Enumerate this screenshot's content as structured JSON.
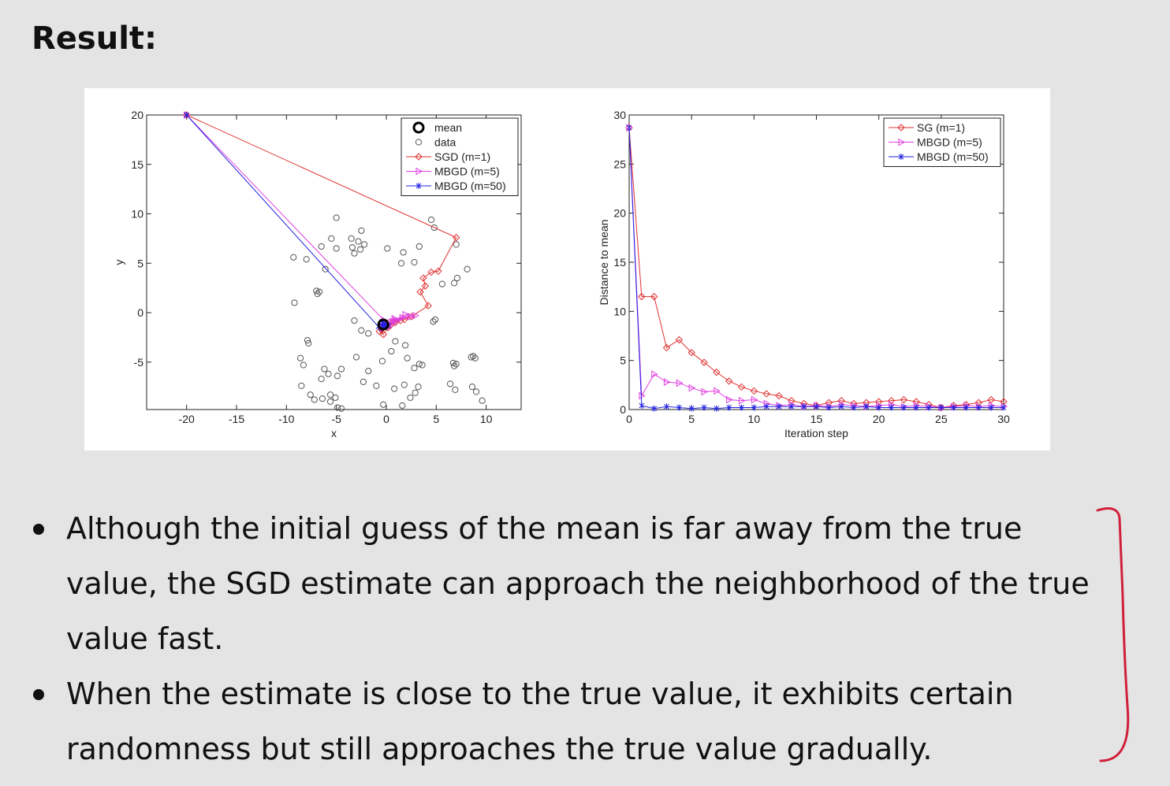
{
  "slide": {
    "title": "Result:",
    "bullets": [
      "Although the initial guess of the mean is far away from the true value, the SGD estimate can approach the neighborhood of the true value fast.",
      "When the estimate is close to the true value, it exhibits certain randomness but still approaches the true value gradually."
    ],
    "annotation_color": "#d0203a"
  },
  "chart_data": [
    {
      "type": "scatter",
      "title": "",
      "xlabel": "x",
      "ylabel": "y",
      "xlim": [
        -24,
        13.5
      ],
      "ylim": [
        -9.8,
        20
      ],
      "xticks": [
        -20,
        -15,
        -10,
        -5,
        0,
        5,
        10
      ],
      "yticks": [
        20,
        15,
        10,
        5,
        0,
        -5
      ],
      "grid": false,
      "legend_position": "top-right",
      "legend": [
        "mean",
        "data",
        "SGD (m=1)",
        "MBGD (m=5)",
        "MBGD (m=50)"
      ],
      "series": [
        {
          "name": "mean",
          "color": "#000000",
          "marker": "big-circle",
          "points": [
            [
              -0.3,
              -1.2
            ]
          ]
        },
        {
          "name": "data",
          "color": "#555555",
          "marker": "circle",
          "points": [
            [
              -5.0,
              9.6
            ],
            [
              -2.5,
              8.3
            ],
            [
              -3.5,
              7.5
            ],
            [
              -2.8,
              7.2
            ],
            [
              -2.2,
              6.9
            ],
            [
              -3.4,
              6.6
            ],
            [
              -2.6,
              6.4
            ],
            [
              -3.2,
              6.0
            ],
            [
              -5.5,
              7.5
            ],
            [
              -5.0,
              6.5
            ],
            [
              -6.5,
              6.7
            ],
            [
              -9.3,
              5.6
            ],
            [
              -8.0,
              5.4
            ],
            [
              -6.1,
              4.4
            ],
            [
              -7.0,
              2.2
            ],
            [
              -6.7,
              2.1
            ],
            [
              -6.9,
              1.9
            ],
            [
              -9.2,
              1.0
            ],
            [
              0.1,
              6.5
            ],
            [
              1.7,
              6.1
            ],
            [
              3.3,
              6.7
            ],
            [
              2.8,
              5.1
            ],
            [
              1.5,
              5.0
            ],
            [
              4.5,
              9.4
            ],
            [
              4.8,
              8.6
            ],
            [
              7.0,
              6.9
            ],
            [
              8.1,
              4.4
            ],
            [
              7.1,
              3.5
            ],
            [
              5.6,
              2.9
            ],
            [
              6.8,
              3.0
            ],
            [
              4.9,
              -0.7
            ],
            [
              4.7,
              -0.9
            ],
            [
              -3.2,
              -0.8
            ],
            [
              -2.5,
              -1.8
            ],
            [
              -1.8,
              -2.1
            ],
            [
              0.9,
              -2.9
            ],
            [
              1.9,
              -3.3
            ],
            [
              -7.9,
              -2.8
            ],
            [
              -7.8,
              -3.1
            ],
            [
              -8.6,
              -4.6
            ],
            [
              -8.3,
              -5.3
            ],
            [
              -6.2,
              -5.7
            ],
            [
              -5.8,
              -6.2
            ],
            [
              -6.5,
              -6.7
            ],
            [
              -4.9,
              -6.4
            ],
            [
              -4.5,
              -5.7
            ],
            [
              -3.0,
              -4.5
            ],
            [
              -1.8,
              -5.9
            ],
            [
              -0.4,
              -4.9
            ],
            [
              0.5,
              -3.9
            ],
            [
              2.1,
              -4.6
            ],
            [
              3.3,
              -5.2
            ],
            [
              2.8,
              -5.6
            ],
            [
              3.6,
              -5.3
            ],
            [
              6.7,
              -5.1
            ],
            [
              6.8,
              -5.4
            ],
            [
              7.0,
              -5.2
            ],
            [
              8.5,
              -4.5
            ],
            [
              8.9,
              -4.6
            ],
            [
              8.7,
              -4.4
            ],
            [
              -8.5,
              -7.4
            ],
            [
              -7.6,
              -8.3
            ],
            [
              -7.2,
              -8.8
            ],
            [
              -6.4,
              -8.7
            ],
            [
              -5.6,
              -8.3
            ],
            [
              -5.1,
              -8.6
            ],
            [
              -5.6,
              -9.0
            ],
            [
              -4.9,
              -9.6
            ],
            [
              -4.5,
              -9.7
            ],
            [
              -2.3,
              -7.0
            ],
            [
              -1.0,
              -7.4
            ],
            [
              0.8,
              -7.7
            ],
            [
              1.8,
              -7.3
            ],
            [
              3.2,
              -7.5
            ],
            [
              2.9,
              -8.1
            ],
            [
              6.4,
              -7.2
            ],
            [
              6.9,
              -7.8
            ],
            [
              8.6,
              -7.5
            ],
            [
              9.0,
              -8.0
            ],
            [
              9.6,
              -8.9
            ],
            [
              -0.3,
              -9.3
            ],
            [
              1.6,
              -9.4
            ],
            [
              2.4,
              -8.6
            ]
          ]
        },
        {
          "name": "SGD (m=1)",
          "color": "#e03030",
          "marker": "diamond",
          "points": [
            [
              -20,
              20
            ],
            [
              7,
              7.6
            ],
            [
              5.2,
              4.2
            ],
            [
              4.5,
              4.1
            ],
            [
              3.7,
              3.5
            ],
            [
              3.9,
              2.7
            ],
            [
              3.4,
              2.1
            ],
            [
              4.2,
              0.7
            ],
            [
              2.5,
              -0.4
            ],
            [
              1.8,
              -0.7
            ],
            [
              0.7,
              -0.9
            ],
            [
              0.4,
              -1.3
            ],
            [
              -0.5,
              -1.6
            ],
            [
              -0.3,
              -2.2
            ],
            [
              -0.7,
              -1.9
            ],
            [
              0.2,
              -1.5
            ],
            [
              -0.2,
              -1.7
            ],
            [
              0.9,
              -1.0
            ],
            [
              1.4,
              -0.8
            ],
            [
              -0.4,
              -1.4
            ]
          ]
        },
        {
          "name": "MBGD (m=5)",
          "color": "#e040e0",
          "marker": "triangle-right",
          "points": [
            [
              -20,
              20
            ],
            [
              -0.2,
              -0.8
            ],
            [
              2.4,
              -0.4
            ],
            [
              0.8,
              -0.6
            ],
            [
              1.6,
              -0.5
            ],
            [
              0.6,
              -0.9
            ],
            [
              0.0,
              -1.2
            ],
            [
              1.9,
              -0.2
            ],
            [
              2.9,
              -0.3
            ],
            [
              0.9,
              -0.8
            ],
            [
              -0.4,
              -1.0
            ],
            [
              0.3,
              -1.4
            ],
            [
              1.0,
              -0.9
            ],
            [
              -0.2,
              -1.2
            ]
          ]
        },
        {
          "name": "MBGD (m=50)",
          "color": "#2020e0",
          "marker": "star",
          "points": [
            [
              -20,
              20
            ],
            [
              -0.8,
              -1.4
            ],
            [
              -0.4,
              -1.0
            ],
            [
              0.2,
              -1.3
            ],
            [
              -0.5,
              -1.6
            ],
            [
              -0.1,
              -1.2
            ],
            [
              -0.3,
              -1.1
            ],
            [
              -0.4,
              -1.3
            ],
            [
              -0.2,
              -1.4
            ]
          ]
        }
      ]
    },
    {
      "type": "line",
      "title": "",
      "xlabel": "Iteration step",
      "ylabel": "Distance to mean",
      "xlim": [
        0,
        30
      ],
      "ylim": [
        0,
        30
      ],
      "xticks": [
        0,
        5,
        10,
        15,
        20,
        25,
        30
      ],
      "yticks": [
        0,
        5,
        10,
        15,
        20,
        25,
        30
      ],
      "grid": false,
      "legend_position": "top-right",
      "x": [
        0,
        1,
        2,
        3,
        4,
        5,
        6,
        7,
        8,
        9,
        10,
        11,
        12,
        13,
        14,
        15,
        16,
        17,
        18,
        19,
        20,
        21,
        22,
        23,
        24,
        25,
        26,
        27,
        28,
        29,
        30
      ],
      "series": [
        {
          "name": "SG (m=1)",
          "color": "#e03030",
          "marker": "diamond",
          "values": [
            28.7,
            11.5,
            11.5,
            6.3,
            7.1,
            5.8,
            4.8,
            3.8,
            2.9,
            2.3,
            1.9,
            1.6,
            1.4,
            0.9,
            0.6,
            0.4,
            0.7,
            0.9,
            0.6,
            0.7,
            0.8,
            0.9,
            1.0,
            0.8,
            0.5,
            0.2,
            0.4,
            0.5,
            0.7,
            1.0,
            0.8
          ]
        },
        {
          "name": "MBGD (m=5)",
          "color": "#e040e0",
          "marker": "triangle-right",
          "values": [
            28.7,
            1.4,
            3.6,
            2.8,
            2.7,
            2.2,
            1.8,
            1.9,
            1.0,
            0.9,
            1.0,
            0.6,
            0.4,
            0.5,
            0.3,
            0.4,
            0.3,
            0.5,
            0.4,
            0.3,
            0.4,
            0.5,
            0.3,
            0.4,
            0.3,
            0.2,
            0.3,
            0.4,
            0.3,
            0.4,
            0.3
          ]
        },
        {
          "name": "MBGD (m=50)",
          "color": "#2020e0",
          "marker": "star",
          "values": [
            28.7,
            0.4,
            0.1,
            0.3,
            0.2,
            0.1,
            0.2,
            0.1,
            0.2,
            0.2,
            0.2,
            0.3,
            0.3,
            0.3,
            0.3,
            0.3,
            0.2,
            0.3,
            0.2,
            0.3,
            0.2,
            0.2,
            0.2,
            0.2,
            0.2,
            0.2,
            0.2,
            0.2,
            0.2,
            0.2,
            0.2
          ]
        }
      ]
    }
  ]
}
